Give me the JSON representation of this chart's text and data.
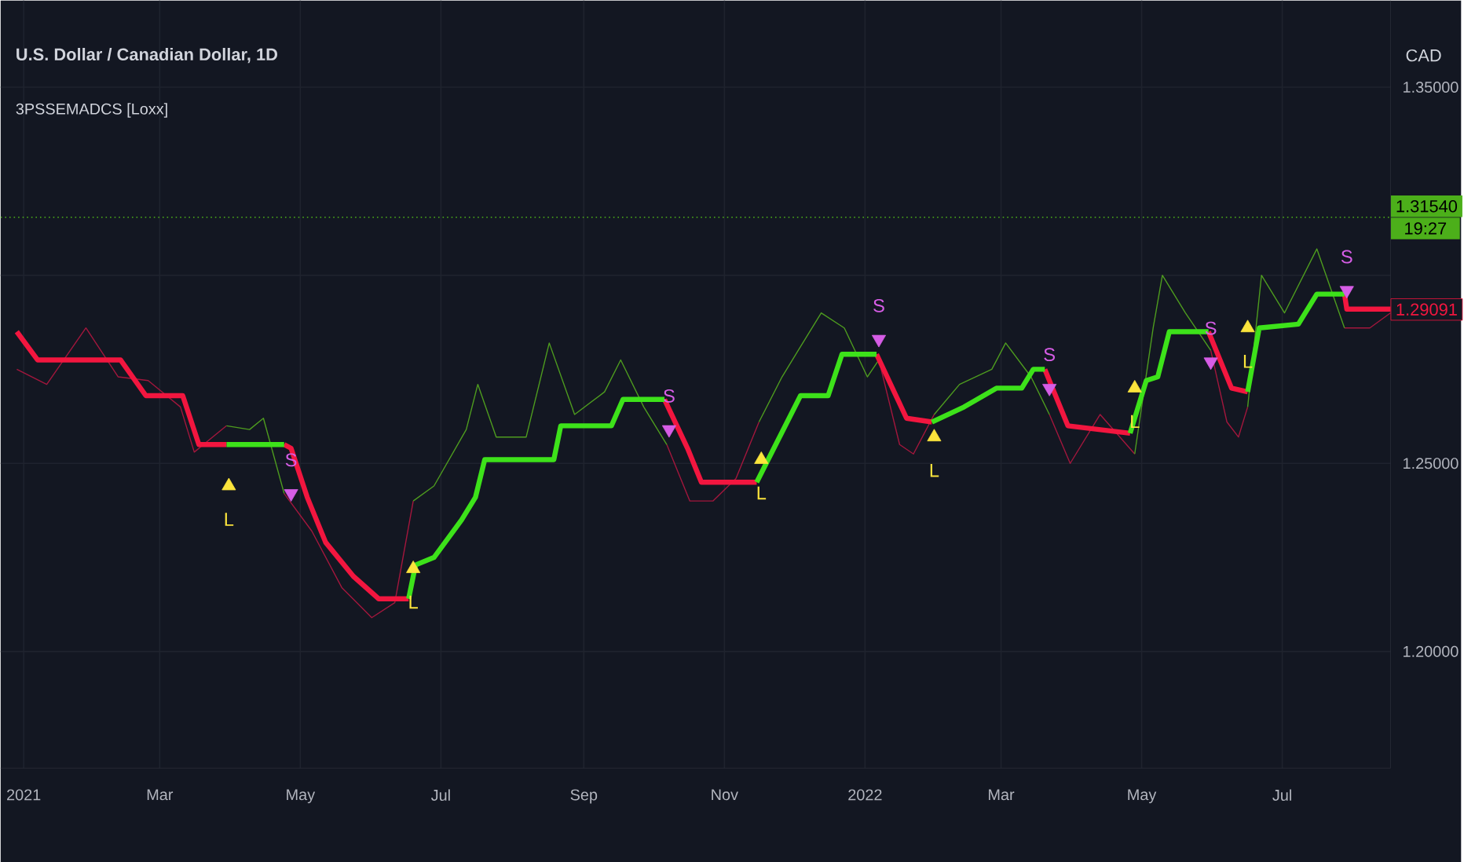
{
  "chart_data": {
    "type": "line",
    "title": "U.S. Dollar / Canadian Dollar, 1D",
    "subtitle": "3PSSEMADCS [Loxx]",
    "ylabel": "CAD",
    "xlim": [
      "2020-12-22",
      "2022-08-17"
    ],
    "ylim": [
      1.169,
      1.373
    ],
    "xticks": [
      {
        "value": "2021-01-01",
        "label": "2021"
      },
      {
        "value": "2021-03-01",
        "label": "Mar"
      },
      {
        "value": "2021-05-01",
        "label": "May"
      },
      {
        "value": "2021-07-01",
        "label": "Jul"
      },
      {
        "value": "2021-09-01",
        "label": "Sep"
      },
      {
        "value": "2021-11-01",
        "label": "Nov"
      },
      {
        "value": "2022-01-01",
        "label": "2022"
      },
      {
        "value": "2022-03-01",
        "label": "Mar"
      },
      {
        "value": "2022-05-01",
        "label": "May"
      },
      {
        "value": "2022-07-01",
        "label": "Jul"
      }
    ],
    "yticks": [
      {
        "value": 1.2,
        "label": "1.20000"
      },
      {
        "value": 1.25,
        "label": "1.25000"
      },
      {
        "value": 1.3,
        "label": null
      },
      {
        "value": 1.35,
        "label": "1.35000"
      }
    ],
    "grid": true,
    "series": [
      {
        "color": "#a3173d",
        "x": [
          "2020-12-29",
          "2021-01-11",
          "2021-01-28",
          "2021-02-11",
          "2021-02-24",
          "2021-03-10",
          "2021-03-16",
          "2021-03-30",
          "2021-04-10",
          "2021-04-24",
          "2021-05-06",
          "2021-05-19",
          "2021-06-01",
          "2021-06-11",
          "2021-06-19",
          "2021-08-01",
          "2021-10-07",
          "2021-10-17",
          "2021-10-27",
          "2021-11-06",
          "2021-11-16",
          "2021-12-10",
          "2022-01-07",
          "2022-01-16",
          "2022-01-22",
          "2022-01-31",
          "2022-03-01",
          "2022-03-22",
          "2022-03-31",
          "2022-04-13",
          "2022-04-28",
          "2022-05-15",
          "2022-05-31",
          "2022-06-07",
          "2022-06-12",
          "2022-06-16",
          "2022-07-01",
          "2022-07-28",
          "2022-08-08",
          "2022-08-17"
        ],
        "values": [
          1.275,
          1.271,
          1.286,
          1.273,
          1.272,
          1.265,
          1.253,
          1.26,
          null,
          1.242,
          1.232,
          1.217,
          1.209,
          1.213,
          1.24,
          null,
          1.255,
          1.24,
          1.24,
          1.246,
          1.261,
          null,
          1.2775,
          1.255,
          1.2525,
          1.263,
          null,
          1.263,
          1.25,
          1.263,
          1.2525,
          null,
          1.28,
          1.261,
          1.257,
          1.265,
          null,
          1.286,
          1.286,
          1.29
        ]
      },
      {
        "color": "#4e9c1f",
        "x": [
          "2021-03-30",
          "2021-04-09",
          "2021-04-15",
          "2021-04-24",
          "2021-05-20",
          "2021-06-19",
          "2021-06-28",
          "2021-07-12",
          "2021-07-17",
          "2021-07-25",
          "2021-08-07",
          "2021-08-17",
          "2021-08-28",
          "2021-09-10",
          "2021-09-17",
          "2021-09-27",
          "2021-10-07",
          "2021-10-25",
          "2021-11-16",
          "2021-11-26",
          "2021-12-03",
          "2021-12-13",
          "2021-12-23",
          "2022-01-02",
          "2022-01-07",
          "2022-01-20",
          "2022-01-31",
          "2022-02-11",
          "2022-02-25",
          "2022-03-03",
          "2022-03-14",
          "2022-03-22",
          "2022-04-10",
          "2022-04-28",
          "2022-05-06",
          "2022-05-10",
          "2022-05-20",
          "2022-05-31",
          "2022-06-08",
          "2022-06-16",
          "2022-06-22",
          "2022-07-02",
          "2022-07-16",
          "2022-07-28"
        ],
        "values": [
          1.26,
          1.259,
          1.262,
          1.242,
          null,
          1.24,
          1.244,
          1.259,
          1.271,
          1.257,
          1.257,
          1.282,
          1.263,
          1.269,
          1.2775,
          1.265,
          1.255,
          null,
          1.261,
          1.273,
          1.28,
          1.29,
          1.286,
          1.273,
          1.2775,
          null,
          1.263,
          1.271,
          1.275,
          1.282,
          1.273,
          1.263,
          null,
          1.2525,
          1.286,
          1.3,
          1.29,
          1.28,
          null,
          1.265,
          1.3,
          1.29,
          1.307,
          1.286
        ]
      },
      {
        "color": "#f2163f",
        "x": [
          "2020-12-29",
          "2021-01-07",
          "2021-02-12",
          "2021-02-23",
          "2021-03-11",
          "2021-03-18",
          "2021-03-30",
          "2021-04-10",
          "2021-04-24",
          "2021-04-27",
          "2021-05-04",
          "2021-05-12",
          "2021-05-24",
          "2021-06-04",
          "2021-06-17",
          "2021-08-01",
          "2021-10-06",
          "2021-10-16",
          "2021-10-22",
          "2021-11-15",
          "2021-12-01",
          "2022-01-06",
          "2022-01-19",
          "2022-01-30",
          "2022-02-20",
          "2022-03-20",
          "2022-03-30",
          "2022-04-26",
          "2022-05-15",
          "2022-05-30",
          "2022-06-09",
          "2022-06-16",
          "2022-07-01",
          "2022-07-28",
          "2022-07-29",
          "2022-08-17"
        ],
        "values": [
          1.285,
          1.2775,
          1.2775,
          1.268,
          1.268,
          1.255,
          1.255,
          null,
          1.255,
          1.254,
          1.241,
          1.229,
          1.22,
          1.214,
          1.214,
          null,
          1.267,
          1.254,
          1.245,
          1.245,
          null,
          1.279,
          1.262,
          1.261,
          null,
          1.275,
          1.26,
          1.258,
          null,
          1.285,
          1.27,
          1.269,
          null,
          1.295,
          1.291,
          1.291
        ]
      },
      {
        "color": "#3de21a",
        "x": [
          "2021-03-30",
          "2021-04-24",
          "2021-05-20",
          "2021-06-17",
          "2021-06-20",
          "2021-06-28",
          "2021-07-10",
          "2021-07-16",
          "2021-07-20",
          "2021-08-19",
          "2021-08-22",
          "2021-09-13",
          "2021-09-18",
          "2021-10-06",
          "2021-10-25",
          "2021-11-15",
          "2021-12-04",
          "2021-12-16",
          "2021-12-22",
          "2022-01-06",
          "2022-01-20",
          "2022-01-30",
          "2022-02-13",
          "2022-02-27",
          "2022-03-10",
          "2022-03-15",
          "2022-03-20",
          "2022-04-10",
          "2022-04-26",
          "2022-05-03",
          "2022-05-08",
          "2022-05-13",
          "2022-05-30",
          "2022-06-08",
          "2022-06-16",
          "2022-06-21",
          "2022-07-08",
          "2022-07-16",
          "2022-07-28"
        ],
        "values": [
          1.255,
          1.255,
          null,
          1.214,
          1.223,
          1.225,
          1.235,
          1.241,
          1.251,
          1.251,
          1.26,
          1.26,
          1.267,
          1.267,
          null,
          1.245,
          1.268,
          1.268,
          1.279,
          1.279,
          null,
          1.261,
          1.265,
          1.27,
          1.27,
          1.275,
          1.275,
          null,
          1.258,
          1.272,
          1.273,
          1.285,
          1.285,
          null,
          1.269,
          1.286,
          1.287,
          1.295,
          1.295
        ]
      },
      {
        "type": "scatter",
        "color": "#fbe43c",
        "marker": "triangle",
        "x": [
          "2021-03-31",
          "2021-06-19",
          "2021-11-17",
          "2022-01-31",
          "2022-04-28",
          "2022-06-16"
        ],
        "values": [
          1.244,
          1.222,
          1.251,
          1.257,
          1.27,
          1.286
        ],
        "value_labels": [
          "L",
          "L",
          "L",
          "L",
          "L",
          "L"
        ]
      },
      {
        "type": "scatter",
        "color": "#d65de6",
        "marker": "triangle",
        "x": [
          "2021-04-27",
          "2021-10-08",
          "2022-01-07",
          "2022-03-22",
          "2022-05-31",
          "2022-07-29"
        ],
        "values": [
          1.242,
          1.259,
          1.283,
          1.27,
          1.277,
          1.296
        ],
        "value_labels": [
          "S",
          "S",
          "S",
          "S",
          "S",
          "S"
        ]
      }
    ],
    "ref_lines": [
      {
        "axis": "y",
        "value": 1.3154,
        "label": "1.31540",
        "color": "#4caf1a",
        "line_style": "dotted"
      }
    ],
    "annotations": [
      "19:27",
      {
        "text": "1.29091",
        "x": "2022-08-17",
        "y": 1.29091
      }
    ]
  }
}
